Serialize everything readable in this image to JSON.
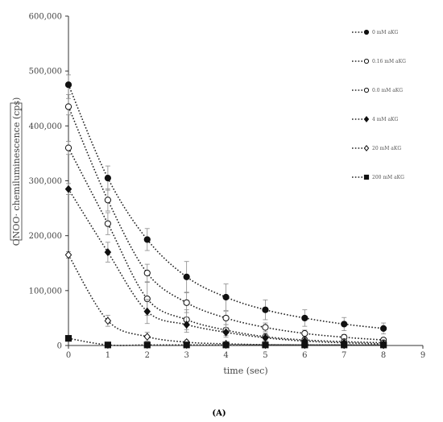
{
  "chart_data": {
    "type": "line",
    "xlabel": "time (sec)",
    "ylabel": "ONOO· chemiluminescence (cps)",
    "xlim": [
      0,
      9
    ],
    "ylim": [
      0,
      600000
    ],
    "x_ticks": [
      "0",
      "1",
      "2",
      "3",
      "4",
      "5",
      "6",
      "7",
      "8",
      "9"
    ],
    "y_ticks": [
      "0",
      "100,000",
      "200,000",
      "300,000",
      "400,000",
      "500,000",
      "600,000"
    ],
    "panel_label": "(A)",
    "grid": false,
    "legend_position": "top-right",
    "series": [
      {
        "name": "0 mM aKG",
        "marker": "filled-circle",
        "x": [
          0,
          1,
          2,
          3,
          4,
          5,
          6,
          7,
          8
        ],
        "values": [
          475000,
          305000,
          193000,
          125000,
          88000,
          65000,
          50000,
          39000,
          31000
        ],
        "errors": [
          18000,
          22000,
          20000,
          28000,
          24000,
          18000,
          15000,
          12000,
          10000
        ]
      },
      {
        "name": "0.16 mM aKG",
        "marker": "open-circle",
        "x": [
          0,
          1,
          2,
          3,
          4,
          5,
          6,
          7,
          8
        ],
        "values": [
          435000,
          265000,
          132000,
          78000,
          50000,
          33000,
          22000,
          15000,
          10000
        ],
        "errors": [
          15000,
          20000,
          16000,
          18000,
          12000,
          8000,
          6000,
          5000,
          4000
        ]
      },
      {
        "name": "0.0 mM aKG",
        "marker": "open-circle",
        "x": [
          0,
          1,
          2,
          3,
          4,
          5,
          6,
          7,
          8
        ],
        "values": [
          360000,
          222000,
          85000,
          47000,
          28000,
          16000,
          10000,
          7000,
          5000
        ],
        "errors": [
          12000,
          20000,
          30000,
          18000,
          10000,
          6000,
          4000,
          3000,
          3000
        ]
      },
      {
        "name": "4 mM aKG",
        "marker": "filled-diamond",
        "x": [
          0,
          1,
          2,
          3,
          4,
          5,
          6,
          7,
          8
        ],
        "values": [
          285000,
          170000,
          62000,
          38000,
          24000,
          14000,
          8000,
          5000,
          3000
        ],
        "errors": [
          10000,
          18000,
          22000,
          14000,
          9000,
          6000,
          4000,
          3000,
          2000
        ]
      },
      {
        "name": "20 mM aKG",
        "marker": "open-diamond",
        "x": [
          0,
          1,
          2,
          3,
          4,
          5,
          6,
          7,
          8
        ],
        "values": [
          165000,
          45000,
          16000,
          6000,
          3000,
          1500,
          1000,
          800,
          600
        ],
        "errors": [
          6000,
          10000,
          8000,
          4000,
          2000,
          1000,
          800,
          600,
          500
        ]
      },
      {
        "name": "200 mM aKG",
        "marker": "filled-square",
        "x": [
          0,
          1,
          2,
          3,
          4,
          5,
          6,
          7,
          8
        ],
        "values": [
          13000,
          1000,
          1000,
          1000,
          1000,
          1000,
          1000,
          1000,
          1000
        ],
        "errors": [
          2000,
          500,
          500,
          500,
          500,
          500,
          500,
          500,
          500
        ]
      }
    ]
  }
}
